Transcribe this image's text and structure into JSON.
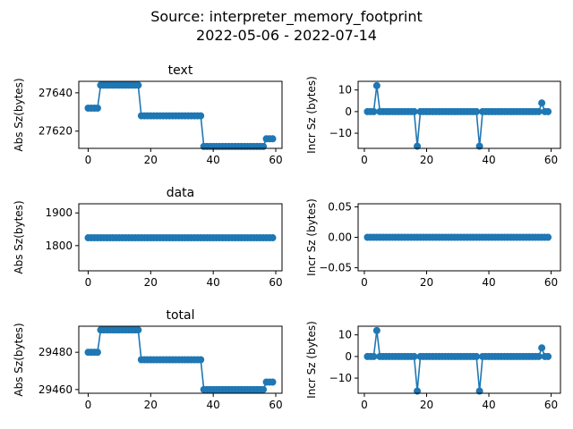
{
  "figure": {
    "title_line1": "Source: interpreter_memory_footprint",
    "title_line2": "2022-05-06 - 2022-07-14"
  },
  "colors": {
    "series": "#1f77b4",
    "axis": "#000000",
    "background": "#ffffff"
  },
  "chart_data": [
    {
      "type": "line",
      "title": "text",
      "xlabel": "",
      "ylabel": "Abs Sz(bytes)",
      "xlim": [
        -3,
        62
      ],
      "ylim": [
        27611,
        27646
      ],
      "xticks": [
        0,
        20,
        40,
        60
      ],
      "yticks": [
        27620,
        27640
      ],
      "grid": false,
      "marker": "circle",
      "x": [
        0,
        1,
        2,
        3,
        4,
        5,
        6,
        7,
        8,
        9,
        10,
        11,
        12,
        13,
        14,
        15,
        16,
        17,
        18,
        19,
        20,
        21,
        22,
        23,
        24,
        25,
        26,
        27,
        28,
        29,
        30,
        31,
        32,
        33,
        34,
        35,
        36,
        37,
        38,
        39,
        40,
        41,
        42,
        43,
        44,
        45,
        46,
        47,
        48,
        49,
        50,
        51,
        52,
        53,
        54,
        55,
        56,
        57,
        58,
        59
      ],
      "y": [
        27632,
        27632,
        27632,
        27632,
        27644,
        27644,
        27644,
        27644,
        27644,
        27644,
        27644,
        27644,
        27644,
        27644,
        27644,
        27644,
        27644,
        27628,
        27628,
        27628,
        27628,
        27628,
        27628,
        27628,
        27628,
        27628,
        27628,
        27628,
        27628,
        27628,
        27628,
        27628,
        27628,
        27628,
        27628,
        27628,
        27628,
        27612,
        27612,
        27612,
        27612,
        27612,
        27612,
        27612,
        27612,
        27612,
        27612,
        27612,
        27612,
        27612,
        27612,
        27612,
        27612,
        27612,
        27612,
        27612,
        27612,
        27616,
        27616,
        27616
      ]
    },
    {
      "type": "line",
      "title": "",
      "xlabel": "",
      "ylabel": "Incr Sz (bytes)",
      "xlim": [
        -2,
        63
      ],
      "ylim": [
        -17,
        14
      ],
      "xticks": [
        0,
        20,
        40,
        60
      ],
      "yticks": [
        -10,
        0,
        10
      ],
      "grid": false,
      "marker": "circle",
      "x": [
        1,
        2,
        3,
        4,
        5,
        6,
        7,
        8,
        9,
        10,
        11,
        12,
        13,
        14,
        15,
        16,
        17,
        18,
        19,
        20,
        21,
        22,
        23,
        24,
        25,
        26,
        27,
        28,
        29,
        30,
        31,
        32,
        33,
        34,
        35,
        36,
        37,
        38,
        39,
        40,
        41,
        42,
        43,
        44,
        45,
        46,
        47,
        48,
        49,
        50,
        51,
        52,
        53,
        54,
        55,
        56,
        57,
        58,
        59
      ],
      "y": [
        0,
        0,
        0,
        12,
        0,
        0,
        0,
        0,
        0,
        0,
        0,
        0,
        0,
        0,
        0,
        0,
        -16,
        0,
        0,
        0,
        0,
        0,
        0,
        0,
        0,
        0,
        0,
        0,
        0,
        0,
        0,
        0,
        0,
        0,
        0,
        0,
        -16,
        0,
        0,
        0,
        0,
        0,
        0,
        0,
        0,
        0,
        0,
        0,
        0,
        0,
        0,
        0,
        0,
        0,
        0,
        0,
        4,
        0,
        0
      ]
    },
    {
      "type": "line",
      "title": "data",
      "xlabel": "",
      "ylabel": "Abs Sz(bytes)",
      "xlim": [
        -3,
        62
      ],
      "ylim": [
        1723,
        1928
      ],
      "xticks": [
        0,
        20,
        40,
        60
      ],
      "yticks": [
        1800,
        1900
      ],
      "grid": false,
      "marker": "circle",
      "x": [
        0,
        1,
        2,
        3,
        4,
        5,
        6,
        7,
        8,
        9,
        10,
        11,
        12,
        13,
        14,
        15,
        16,
        17,
        18,
        19,
        20,
        21,
        22,
        23,
        24,
        25,
        26,
        27,
        28,
        29,
        30,
        31,
        32,
        33,
        34,
        35,
        36,
        37,
        38,
        39,
        40,
        41,
        42,
        43,
        44,
        45,
        46,
        47,
        48,
        49,
        50,
        51,
        52,
        53,
        54,
        55,
        56,
        57,
        58,
        59
      ],
      "y": [
        1824,
        1824,
        1824,
        1824,
        1824,
        1824,
        1824,
        1824,
        1824,
        1824,
        1824,
        1824,
        1824,
        1824,
        1824,
        1824,
        1824,
        1824,
        1824,
        1824,
        1824,
        1824,
        1824,
        1824,
        1824,
        1824,
        1824,
        1824,
        1824,
        1824,
        1824,
        1824,
        1824,
        1824,
        1824,
        1824,
        1824,
        1824,
        1824,
        1824,
        1824,
        1824,
        1824,
        1824,
        1824,
        1824,
        1824,
        1824,
        1824,
        1824,
        1824,
        1824,
        1824,
        1824,
        1824,
        1824,
        1824,
        1824,
        1824,
        1824
      ]
    },
    {
      "type": "line",
      "title": "",
      "xlabel": "",
      "ylabel": "Incr Sz (bytes)",
      "xlim": [
        -2,
        63
      ],
      "ylim": [
        -0.055,
        0.055
      ],
      "xticks": [
        0,
        20,
        40,
        60
      ],
      "yticks": [
        -0.05,
        0.0,
        0.05
      ],
      "ytick_labels": [
        "−0.05",
        "0.00",
        "0.05"
      ],
      "grid": false,
      "marker": "circle",
      "x": [
        1,
        2,
        3,
        4,
        5,
        6,
        7,
        8,
        9,
        10,
        11,
        12,
        13,
        14,
        15,
        16,
        17,
        18,
        19,
        20,
        21,
        22,
        23,
        24,
        25,
        26,
        27,
        28,
        29,
        30,
        31,
        32,
        33,
        34,
        35,
        36,
        37,
        38,
        39,
        40,
        41,
        42,
        43,
        44,
        45,
        46,
        47,
        48,
        49,
        50,
        51,
        52,
        53,
        54,
        55,
        56,
        57,
        58,
        59
      ],
      "y": [
        0,
        0,
        0,
        0,
        0,
        0,
        0,
        0,
        0,
        0,
        0,
        0,
        0,
        0,
        0,
        0,
        0,
        0,
        0,
        0,
        0,
        0,
        0,
        0,
        0,
        0,
        0,
        0,
        0,
        0,
        0,
        0,
        0,
        0,
        0,
        0,
        0,
        0,
        0,
        0,
        0,
        0,
        0,
        0,
        0,
        0,
        0,
        0,
        0,
        0,
        0,
        0,
        0,
        0,
        0,
        0,
        0,
        0,
        0
      ]
    },
    {
      "type": "line",
      "title": "total",
      "xlabel": "",
      "ylabel": "Abs Sz(bytes)",
      "xlim": [
        -3,
        62
      ],
      "ylim": [
        29458,
        29494
      ],
      "xticks": [
        0,
        20,
        40,
        60
      ],
      "yticks": [
        29460,
        29480
      ],
      "grid": false,
      "marker": "circle",
      "x": [
        0,
        1,
        2,
        3,
        4,
        5,
        6,
        7,
        8,
        9,
        10,
        11,
        12,
        13,
        14,
        15,
        16,
        17,
        18,
        19,
        20,
        21,
        22,
        23,
        24,
        25,
        26,
        27,
        28,
        29,
        30,
        31,
        32,
        33,
        34,
        35,
        36,
        37,
        38,
        39,
        40,
        41,
        42,
        43,
        44,
        45,
        46,
        47,
        48,
        49,
        50,
        51,
        52,
        53,
        54,
        55,
        56,
        57,
        58,
        59
      ],
      "y": [
        29480,
        29480,
        29480,
        29480,
        29492,
        29492,
        29492,
        29492,
        29492,
        29492,
        29492,
        29492,
        29492,
        29492,
        29492,
        29492,
        29492,
        29476,
        29476,
        29476,
        29476,
        29476,
        29476,
        29476,
        29476,
        29476,
        29476,
        29476,
        29476,
        29476,
        29476,
        29476,
        29476,
        29476,
        29476,
        29476,
        29476,
        29460,
        29460,
        29460,
        29460,
        29460,
        29460,
        29460,
        29460,
        29460,
        29460,
        29460,
        29460,
        29460,
        29460,
        29460,
        29460,
        29460,
        29460,
        29460,
        29460,
        29464,
        29464,
        29464
      ]
    },
    {
      "type": "line",
      "title": "",
      "xlabel": "",
      "ylabel": "Incr Sz (bytes)",
      "xlim": [
        -2,
        63
      ],
      "ylim": [
        -17,
        14
      ],
      "xticks": [
        0,
        20,
        40,
        60
      ],
      "yticks": [
        -10,
        0,
        10
      ],
      "grid": false,
      "marker": "circle",
      "x": [
        1,
        2,
        3,
        4,
        5,
        6,
        7,
        8,
        9,
        10,
        11,
        12,
        13,
        14,
        15,
        16,
        17,
        18,
        19,
        20,
        21,
        22,
        23,
        24,
        25,
        26,
        27,
        28,
        29,
        30,
        31,
        32,
        33,
        34,
        35,
        36,
        37,
        38,
        39,
        40,
        41,
        42,
        43,
        44,
        45,
        46,
        47,
        48,
        49,
        50,
        51,
        52,
        53,
        54,
        55,
        56,
        57,
        58,
        59
      ],
      "y": [
        0,
        0,
        0,
        12,
        0,
        0,
        0,
        0,
        0,
        0,
        0,
        0,
        0,
        0,
        0,
        0,
        -16,
        0,
        0,
        0,
        0,
        0,
        0,
        0,
        0,
        0,
        0,
        0,
        0,
        0,
        0,
        0,
        0,
        0,
        0,
        0,
        -16,
        0,
        0,
        0,
        0,
        0,
        0,
        0,
        0,
        0,
        0,
        0,
        0,
        0,
        0,
        0,
        0,
        0,
        0,
        0,
        4,
        0,
        0
      ]
    }
  ]
}
